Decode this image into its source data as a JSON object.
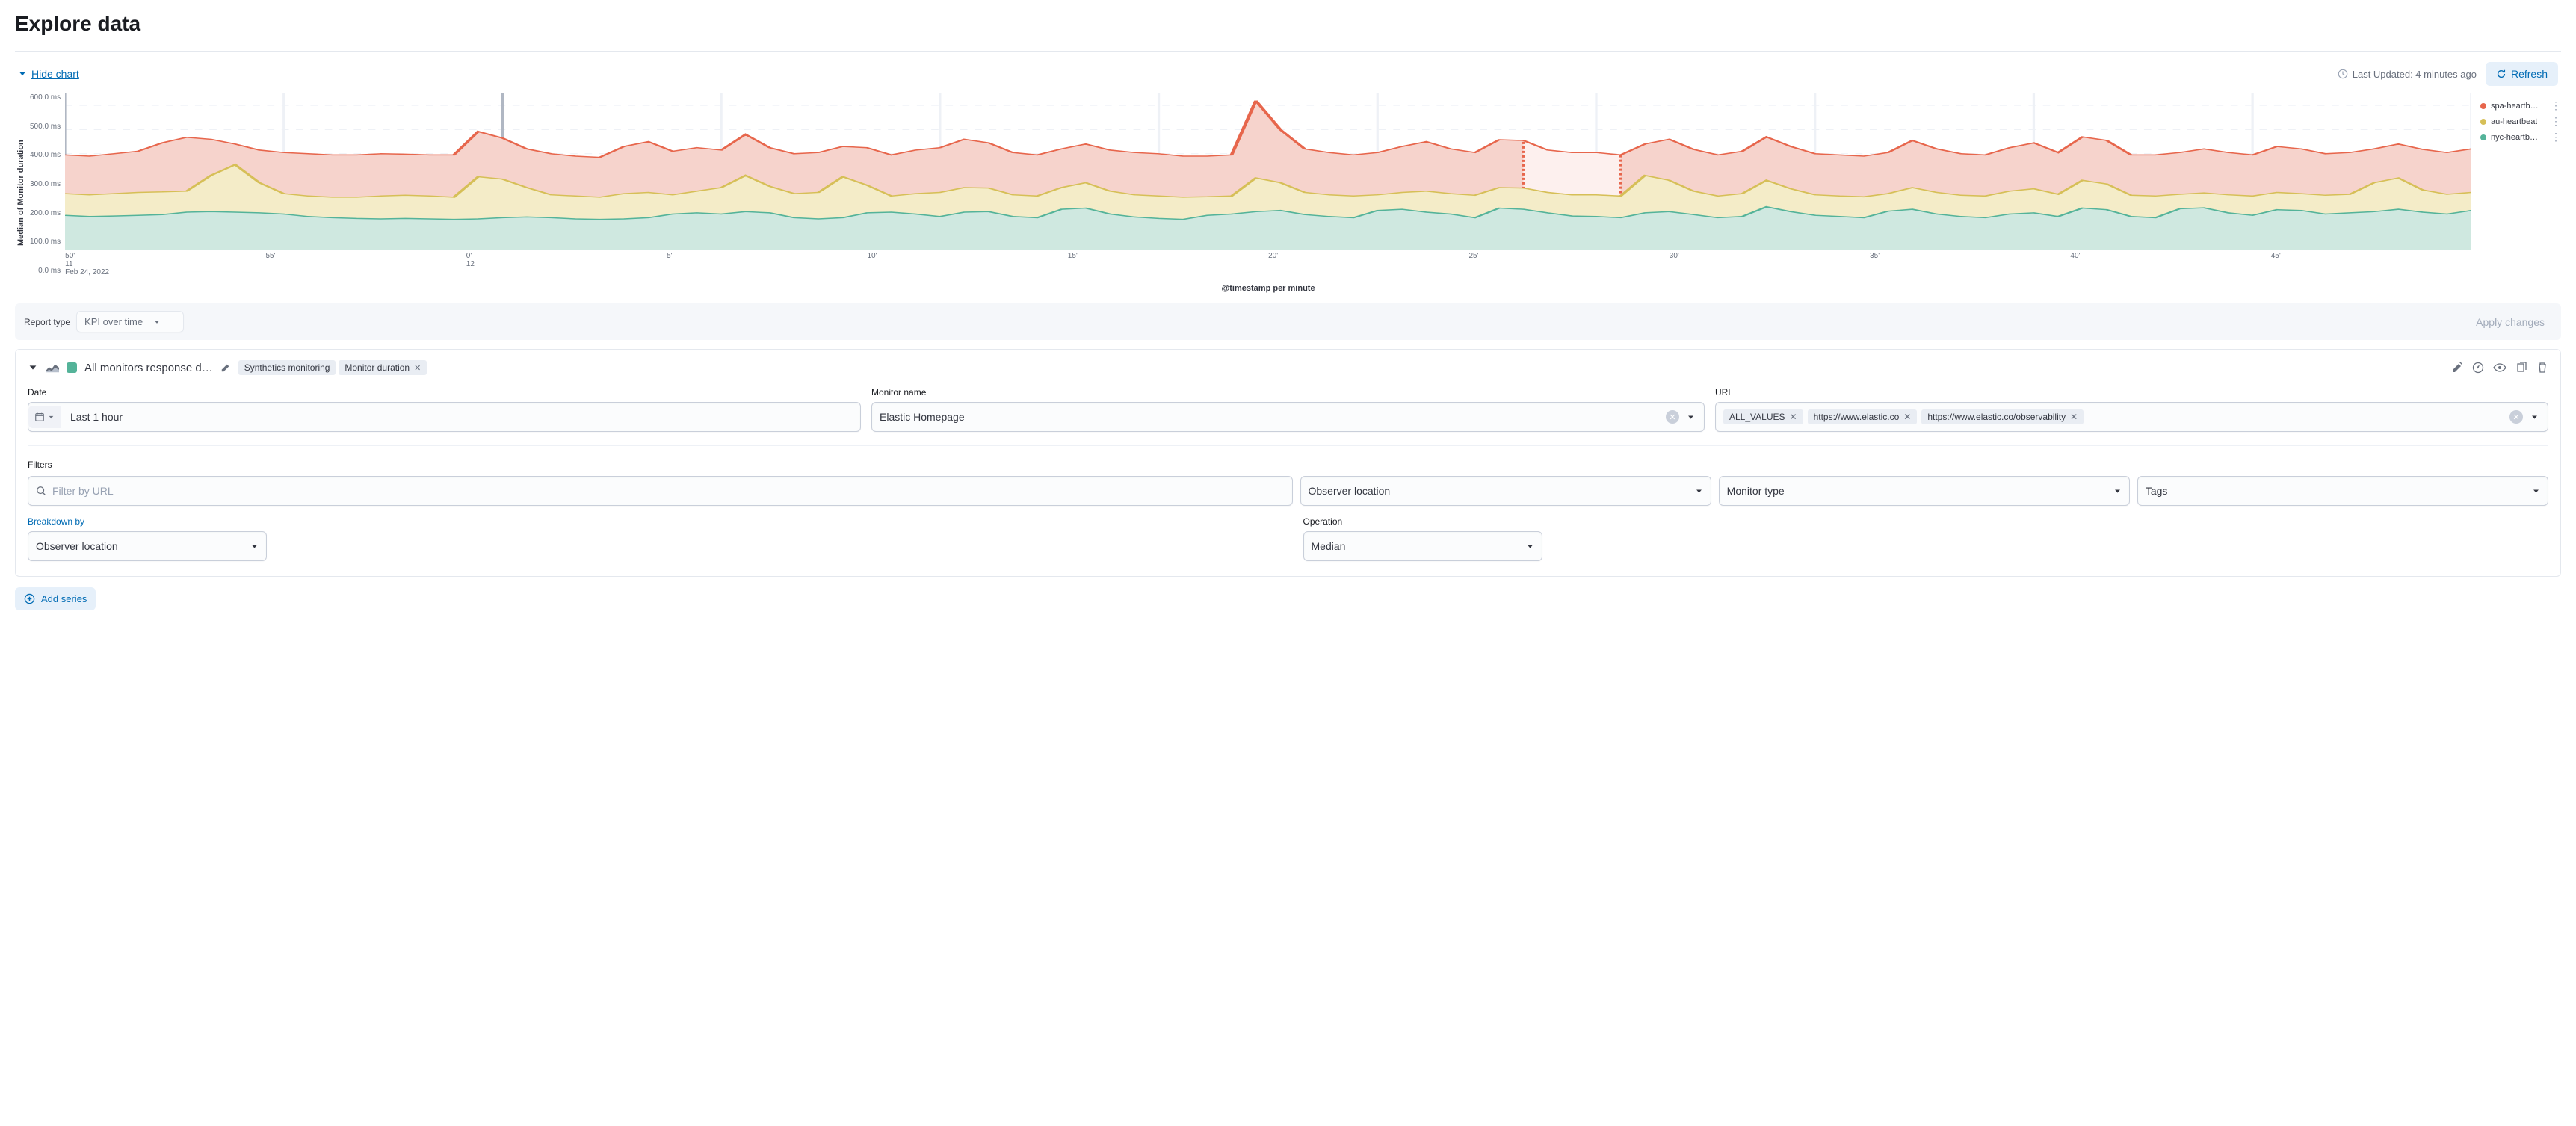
{
  "page_title": "Explore data",
  "hide_chart_label": "Hide chart",
  "last_updated": "Last Updated: 4 minutes ago",
  "refresh_label": "Refresh",
  "report_type": {
    "label": "Report type",
    "value": "KPI over time"
  },
  "apply_changes_label": "Apply changes",
  "add_series_label": "Add series",
  "chart": {
    "type": "area",
    "y_label": "Median of Monitor duration",
    "x_label": "@timestamp per minute",
    "y_ticks": [
      "600.0 ms",
      "500.0 ms",
      "400.0 ms",
      "300.0 ms",
      "200.0 ms",
      "100.0 ms",
      "0.0 ms"
    ],
    "y_max": 650,
    "x_ticks": [
      "50'\n11\nFeb 24, 2022",
      "55'",
      "0'\n12",
      "5'",
      "10'",
      "15'",
      "20'",
      "25'",
      "30'",
      "35'",
      "40'",
      "45'"
    ],
    "legend": [
      {
        "label": "spa-heartb…",
        "color": "#e7664c"
      },
      {
        "label": "au-heartbeat",
        "color": "#d6bf57"
      },
      {
        "label": "nyc-heartb…",
        "color": "#54b399"
      }
    ],
    "grid_color": "#eef1f6",
    "major_grid_color": "#b0b7c3",
    "background": "#ffffff",
    "series": {
      "top": {
        "color_line": "#e7664c",
        "color_fill": "#f6d3cc",
        "values": [
          395,
          390,
          400,
          410,
          445,
          468,
          460,
          440,
          415,
          405,
          400,
          395,
          395,
          400,
          398,
          395,
          395,
          492,
          465,
          420,
          400,
          390,
          385,
          430,
          450,
          410,
          425,
          415,
          480,
          425,
          400,
          405,
          430,
          425,
          395,
          415,
          425,
          460,
          445,
          405,
          395,
          420,
          440,
          415,
          405,
          400,
          390,
          390,
          395,
          620,
          500,
          420,
          405,
          395,
          405,
          430,
          450,
          420,
          405,
          458,
          455,
          415,
          405,
          405,
          395,
          440,
          460,
          418,
          395,
          410,
          470,
          430,
          400,
          395,
          390,
          405,
          455,
          420,
          400,
          395,
          425,
          445,
          405,
          470,
          455,
          395,
          395,
          405,
          420,
          405,
          395,
          430,
          420,
          400,
          405,
          420,
          440,
          418,
          405,
          420
        ]
      },
      "mid": {
        "color_line": "#d6bf57",
        "color_fill": "#f4ecc8",
        "values": [
          235,
          230,
          235,
          240,
          242,
          245,
          310,
          355,
          280,
          235,
          225,
          220,
          220,
          225,
          228,
          225,
          220,
          305,
          295,
          260,
          230,
          225,
          220,
          235,
          240,
          230,
          245,
          260,
          310,
          265,
          235,
          240,
          305,
          270,
          225,
          235,
          240,
          260,
          258,
          230,
          225,
          260,
          280,
          245,
          230,
          225,
          220,
          222,
          225,
          300,
          280,
          240,
          230,
          225,
          230,
          240,
          245,
          235,
          228,
          260,
          258,
          240,
          230,
          230,
          225,
          310,
          290,
          245,
          225,
          235,
          290,
          255,
          230,
          225,
          222,
          235,
          260,
          240,
          228,
          225,
          245,
          255,
          232,
          290,
          275,
          228,
          225,
          232,
          238,
          230,
          225,
          240,
          235,
          228,
          232,
          280,
          300,
          250,
          232,
          240
        ]
      },
      "bot": {
        "color_line": "#54b399",
        "color_fill": "#cfe8e0",
        "values": [
          145,
          140,
          142,
          145,
          148,
          158,
          160,
          158,
          155,
          150,
          140,
          135,
          132,
          130,
          132,
          130,
          128,
          130,
          135,
          138,
          135,
          130,
          128,
          130,
          135,
          150,
          155,
          150,
          160,
          155,
          135,
          130,
          135,
          155,
          158,
          150,
          140,
          158,
          160,
          140,
          135,
          170,
          175,
          150,
          138,
          132,
          128,
          145,
          150,
          160,
          165,
          148,
          140,
          135,
          165,
          170,
          158,
          150,
          135,
          175,
          170,
          155,
          142,
          140,
          135,
          155,
          160,
          148,
          135,
          140,
          180,
          160,
          145,
          140,
          135,
          162,
          170,
          150,
          140,
          135,
          150,
          155,
          140,
          175,
          168,
          140,
          135,
          172,
          176,
          155,
          145,
          168,
          165,
          150,
          155,
          160,
          170,
          158,
          150,
          165
        ]
      }
    },
    "gap": {
      "start_idx": 60,
      "end_idx": 64
    }
  },
  "series_panel": {
    "swatch_color": "#54b399",
    "title": "All monitors response d…",
    "tags": [
      {
        "label": "Synthetics monitoring",
        "closable": false
      },
      {
        "label": "Monitor duration",
        "closable": true
      }
    ],
    "date": {
      "label": "Date",
      "value": "Last 1 hour"
    },
    "monitor_name": {
      "label": "Monitor name",
      "value": "Elastic Homepage"
    },
    "url": {
      "label": "URL",
      "pills": [
        "ALL_VALUES",
        "https://www.elastic.co",
        "https://www.elastic.co/observability"
      ]
    },
    "filters": {
      "label": "Filters",
      "placeholder": "Filter by URL",
      "selects": [
        "Observer location",
        "Monitor type",
        "Tags"
      ]
    },
    "breakdown": {
      "label": "Breakdown by",
      "value": "Observer location"
    },
    "operation": {
      "label": "Operation",
      "value": "Median"
    }
  }
}
